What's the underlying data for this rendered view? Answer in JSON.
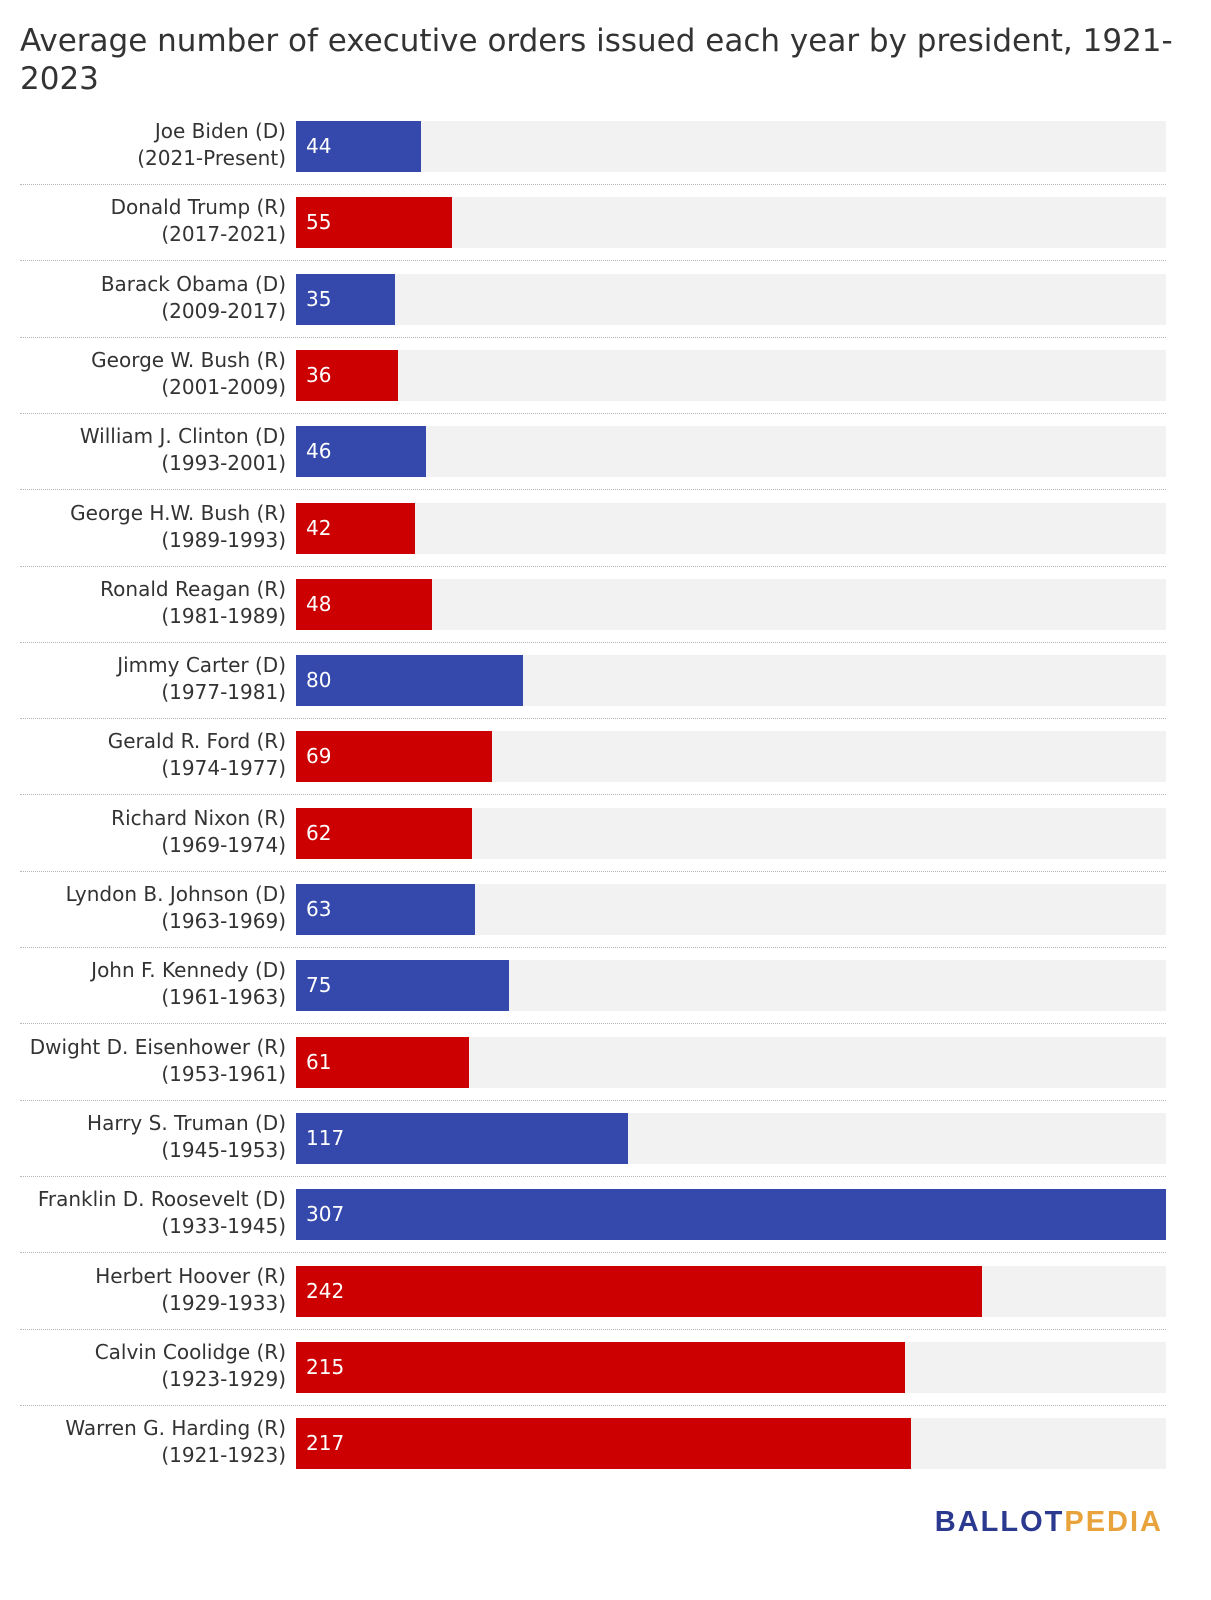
{
  "title": "Average number of executive orders issued each year by president, 1921-2023",
  "logo": {
    "part1": "BALLOT",
    "part2": "PEDIA",
    "color1": "#2b3a8f",
    "color2": "#e8a33d"
  },
  "colors": {
    "D": "#3549ad",
    "R": "#cc0000",
    "track": "#f2f2f2"
  },
  "chart_data": {
    "type": "bar",
    "orientation": "horizontal",
    "title": "Average number of executive orders issued each year by president, 1921-2023",
    "xlim": [
      0,
      307
    ],
    "grid": false,
    "categories": [
      {
        "name": "Joe Biden (D)",
        "years": "(2021-Present)",
        "party": "D",
        "value": 44
      },
      {
        "name": "Donald Trump (R)",
        "years": "(2017-2021)",
        "party": "R",
        "value": 55
      },
      {
        "name": "Barack Obama (D)",
        "years": "(2009-2017)",
        "party": "D",
        "value": 35
      },
      {
        "name": "George W. Bush (R)",
        "years": "(2001-2009)",
        "party": "R",
        "value": 36
      },
      {
        "name": "William J. Clinton (D)",
        "years": "(1993-2001)",
        "party": "D",
        "value": 46
      },
      {
        "name": "George H.W. Bush (R)",
        "years": "(1989-1993)",
        "party": "R",
        "value": 42
      },
      {
        "name": "Ronald Reagan (R)",
        "years": "(1981-1989)",
        "party": "R",
        "value": 48
      },
      {
        "name": "Jimmy Carter (D)",
        "years": "(1977-1981)",
        "party": "D",
        "value": 80
      },
      {
        "name": "Gerald R. Ford (R)",
        "years": "(1974-1977)",
        "party": "R",
        "value": 69
      },
      {
        "name": "Richard Nixon (R)",
        "years": "(1969-1974)",
        "party": "R",
        "value": 62
      },
      {
        "name": "Lyndon B. Johnson (D)",
        "years": "(1963-1969)",
        "party": "D",
        "value": 63
      },
      {
        "name": "John F. Kennedy (D)",
        "years": "(1961-1963)",
        "party": "D",
        "value": 75
      },
      {
        "name": "Dwight D. Eisenhower (R)",
        "years": "(1953-1961)",
        "party": "R",
        "value": 61
      },
      {
        "name": "Harry S. Truman (D)",
        "years": "(1945-1953)",
        "party": "D",
        "value": 117
      },
      {
        "name": "Franklin D. Roosevelt (D)",
        "years": "(1933-1945)",
        "party": "D",
        "value": 307
      },
      {
        "name": "Herbert Hoover (R)",
        "years": "(1929-1933)",
        "party": "R",
        "value": 242
      },
      {
        "name": "Calvin Coolidge (R)",
        "years": "(1923-1929)",
        "party": "R",
        "value": 215
      },
      {
        "name": "Warren G. Harding (R)",
        "years": "(1921-1923)",
        "party": "R",
        "value": 217
      }
    ]
  }
}
